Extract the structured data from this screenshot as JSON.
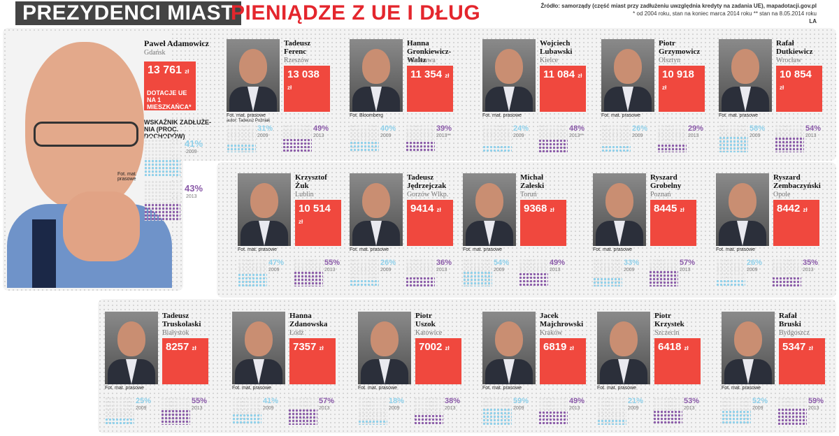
{
  "header": {
    "title_main": "PREZYDENCI MIAST",
    "title_accent": "PIENIĄDZE Z UE I DŁUG",
    "source_line1": "Źródło: samorządy (część miast przy zadłużeniu uwzględnia kredyty na zadania UE), mapadotacji.gov.pl",
    "source_line2": "* od 2004 roku, stan na koniec marca 2014 roku     ** stan na 8.05.2014 roku",
    "source_tag": "LA"
  },
  "featured": {
    "name": "Paweł Adamowicz",
    "city": "Gdańsk",
    "amount": "13 761",
    "unit": "zł",
    "note": "DOTACJE UE NA 1 MIESZKAŃCA*",
    "debt_label": "WSKAŹNIK ZADŁUŻE- NIA (PROC. DOCHODÓW)",
    "credit": "Fot. mat. prasowe",
    "pct_2009": "41%",
    "year_2009": "2009",
    "pct_2013": "43%",
    "year_2013": "2013",
    "fill_2009": 0.41,
    "fill_2013": 0.43
  },
  "mayors": [
    {
      "first": "Tadeusz",
      "last": "Ferenc",
      "city": "Rzeszów",
      "amount": "13 038",
      "unit": "zł",
      "credit": "Fot. mat. prasowe",
      "credit2": "autor: Tadeusz Poźniak",
      "p09": "31%",
      "y09": "2009",
      "p13": "49%",
      "y13": "2013",
      "f09": 0.31,
      "f13": 0.49
    },
    {
      "first": "Hanna",
      "last": "Gronkiewicz-Waltz",
      "city": "Warszawa",
      "amount": "11 354",
      "unit": "zł",
      "credit": "Fot. Bloomberg",
      "p09": "40%",
      "y09": "2009",
      "p13": "39%",
      "y13": "2013**",
      "f09": 0.4,
      "f13": 0.39
    },
    {
      "first": "Wojciech",
      "last": "Lubawski",
      "city": "Kielce",
      "amount": "11 084",
      "unit": "zł",
      "credit": "Fot. mat. prasowe",
      "p09": "24%",
      "y09": "2009",
      "p13": "48%",
      "y13": "2013**",
      "f09": 0.24,
      "f13": 0.48
    },
    {
      "first": "Piotr",
      "last": "Grzymowicz",
      "city": "Olsztyn",
      "amount": "10 918",
      "unit": "zł",
      "credit": "Fot. mat. prasowe",
      "p09": "26%",
      "y09": "2009",
      "p13": "29%",
      "y13": "2013",
      "f09": 0.26,
      "f13": 0.29
    },
    {
      "first": "Rafał",
      "last": "Dutkiewicz",
      "city": "Wrocław",
      "amount": "10 854",
      "unit": "zł",
      "credit": "Fot. mat. prasowe",
      "p09": "58%",
      "y09": "2009",
      "p13": "54%",
      "y13": "2013",
      "f09": 0.58,
      "f13": 0.54
    },
    {
      "first": "Krzysztof",
      "last": "Żuk",
      "city": "Lublin",
      "amount": "10 514",
      "unit": "zł",
      "credit": "Fot. mat. prasowe",
      "p09": "47%",
      "y09": "2009",
      "p13": "55%",
      "y13": "2013",
      "f09": 0.47,
      "f13": 0.55
    },
    {
      "first": "Tadeusz",
      "last": "Jędrzejczak",
      "city": "Gorzów Wlkp.",
      "amount": "9414",
      "unit": "zł",
      "credit": "Fot. mat. prasowe",
      "p09": "26%",
      "y09": "2009",
      "p13": "36%",
      "y13": "2013",
      "f09": 0.26,
      "f13": 0.36
    },
    {
      "first": "Michał",
      "last": "Zaleski",
      "city": "Toruń",
      "amount": "9368",
      "unit": "zł",
      "credit": "Fot. mat. prasowe",
      "p09": "54%",
      "y09": "2009",
      "p13": "49%",
      "y13": "2013",
      "f09": 0.54,
      "f13": 0.49
    },
    {
      "first": "Ryszard",
      "last": "Grobelny",
      "city": "Poznań",
      "amount": "8445",
      "unit": "zł",
      "credit": "Fot. mat. prasowe",
      "p09": "33%",
      "y09": "2009",
      "p13": "57%",
      "y13": "2013",
      "f09": 0.33,
      "f13": 0.57
    },
    {
      "first": "Ryszard",
      "last": "Zembaczyński",
      "city": "Opole",
      "amount": "8442",
      "unit": "zł",
      "credit": "Fot. mat. prasowe",
      "p09": "26%",
      "y09": "2009",
      "p13": "35%",
      "y13": "2013",
      "f09": 0.26,
      "f13": 0.35
    },
    {
      "first": "Tadeusz",
      "last": "Truskolaski",
      "city": "Białystok",
      "amount": "8257",
      "unit": "zł",
      "credit": "Fot. mat. prasowe",
      "p09": "25%",
      "y09": "2009",
      "p13": "55%",
      "y13": "2013",
      "f09": 0.25,
      "f13": 0.55
    },
    {
      "first": "Hanna",
      "last": "Zdanowska",
      "city": "Łódź",
      "amount": "7357",
      "unit": "zł",
      "credit": "Fot. mat. prasowe",
      "p09": "41%",
      "y09": "2009",
      "p13": "57%",
      "y13": "2013",
      "f09": 0.41,
      "f13": 0.57
    },
    {
      "first": "Piotr",
      "last": "Uszok",
      "city": "Katowice",
      "amount": "7002",
      "unit": "zł",
      "credit": "Fot. mat. prasowe",
      "p09": "18%",
      "y09": "2009",
      "p13": "38%",
      "y13": "2013",
      "f09": 0.18,
      "f13": 0.38
    },
    {
      "first": "Jacek",
      "last": "Majchrowski",
      "city": "Kraków",
      "amount": "6819",
      "unit": "zł",
      "credit": "Fot. mat. prasowe",
      "p09": "59%",
      "y09": "2009",
      "p13": "49%",
      "y13": "2013",
      "f09": 0.59,
      "f13": 0.49
    },
    {
      "first": "Piotr",
      "last": "Krzystek",
      "city": "Szczecin",
      "amount": "6418",
      "unit": "zł",
      "credit": "Fot. mat. prasowe",
      "p09": "21%",
      "y09": "2009",
      "p13": "53%",
      "y13": "2013",
      "f09": 0.21,
      "f13": 0.53
    },
    {
      "first": "Rafał",
      "last": "Bruski",
      "city": "Bydgoszcz",
      "amount": "5347",
      "unit": "zł",
      "credit": "Fot. mat. prasowe",
      "p09": "52%",
      "y09": "2009",
      "p13": "59%",
      "y13": "2013",
      "f09": 0.52,
      "f13": 0.59
    }
  ]
}
